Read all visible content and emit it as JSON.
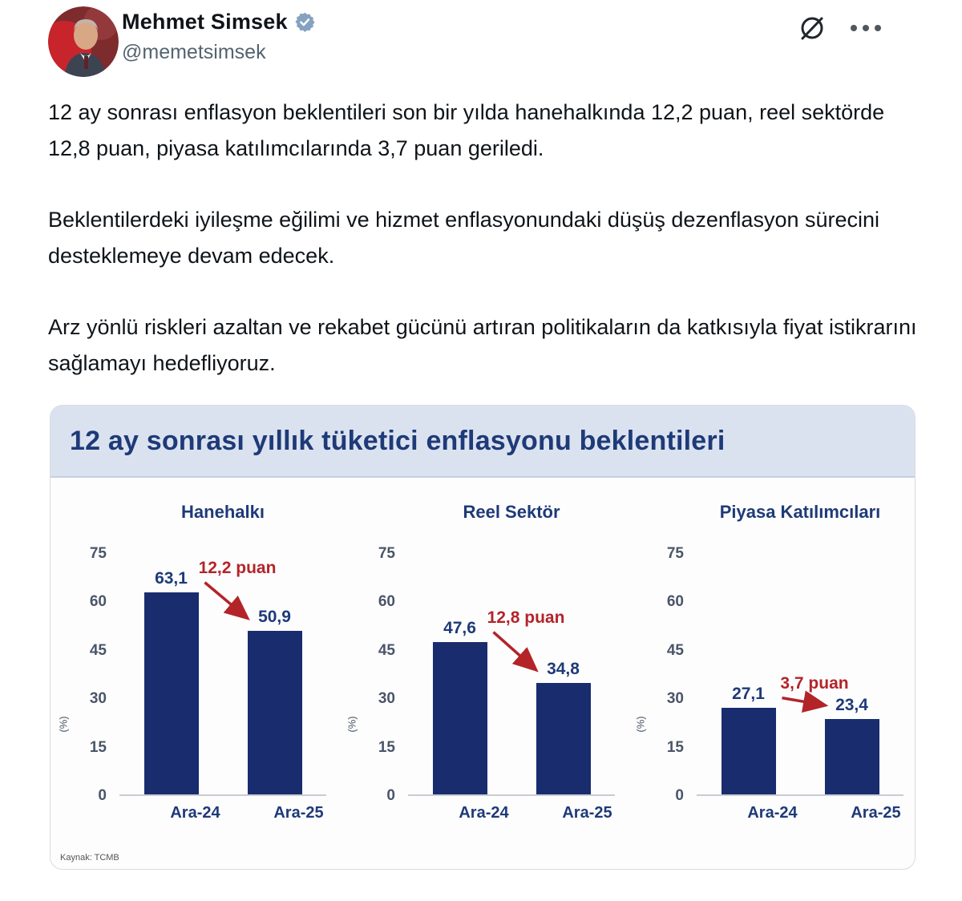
{
  "tweet": {
    "author": {
      "name": "Mehmet Simsek",
      "handle": "@memetsimsek",
      "verified": true
    },
    "paragraphs": [
      "12 ay sonrası enflasyon beklentileri son bir yılda hanehalkında 12,2 puan, reel sektörde 12,8 puan, piyasa katılımcılarında 3,7 puan geriledi.",
      "Beklentilerdeki iyileşme eğilimi ve hizmet enflasyonundaki düşüş dezenflasyon sürecini desteklemeye devam edecek.",
      "Arz yönlü riskleri azaltan ve rekabet gücünü artıran politikaların da katkısıyla fiyat istikrarını sağlamayı hedefliyoruz."
    ],
    "icons": [
      "grok-icon",
      "more-icon",
      "verified-icon"
    ]
  },
  "chart_data": {
    "type": "bar",
    "title": "12 ay sonrası yıllık tüketici enflasyonu beklentileri",
    "source": "Kaynak: TCMB",
    "y_unit": "(%)",
    "categories": [
      "Ara-24",
      "Ara-25"
    ],
    "y_ticks": [
      "75",
      "60",
      "45",
      "30",
      "15",
      "0"
    ],
    "ylim": [
      0,
      75
    ],
    "grid": false,
    "legend": "none",
    "panels": [
      {
        "title": "Hanehalkı",
        "values": [
          63.1,
          50.9
        ],
        "value_labels": [
          "63,1",
          "50,9"
        ],
        "delta_label": "12,2 puan"
      },
      {
        "title": "Reel Sektör",
        "values": [
          47.6,
          34.8
        ],
        "value_labels": [
          "47,6",
          "34,8"
        ],
        "delta_label": "12,8 puan"
      },
      {
        "title": "Piyasa Katılımcıları",
        "values": [
          27.1,
          23.4
        ],
        "value_labels": [
          "27,1",
          "23,4"
        ],
        "delta_label": "3,7 puan"
      }
    ],
    "colors": {
      "bar": "#182c6e",
      "delta": "#b32428",
      "title_navy": "#1e3a78",
      "band_bg": "#dbe2ef"
    }
  }
}
